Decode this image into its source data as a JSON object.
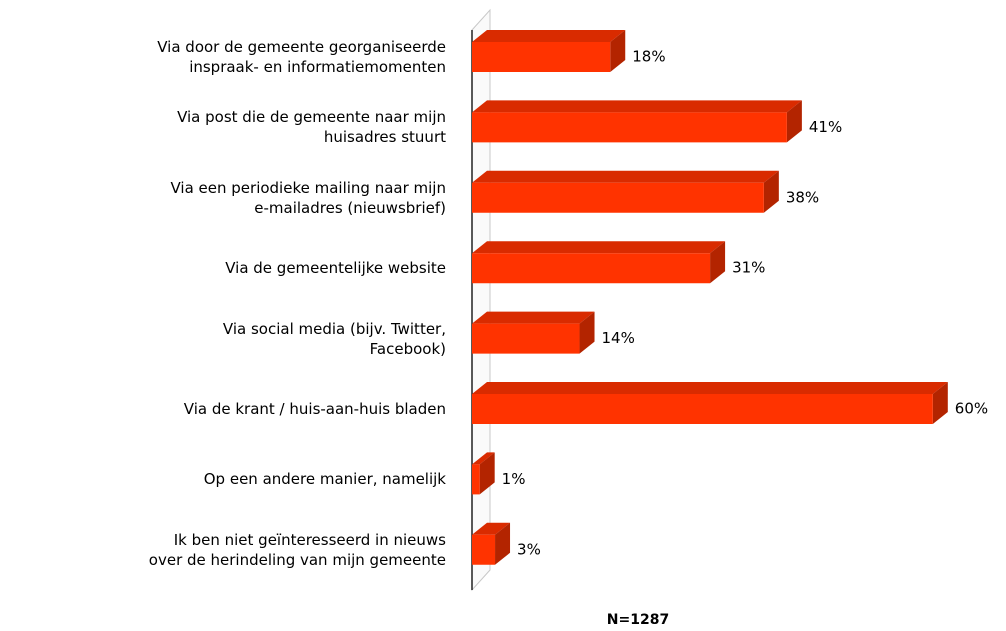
{
  "chart_data": {
    "type": "bar3d_horizontal",
    "categories": [
      "Via door de gemeente georganiseerde\ninspraak- en informatiemomenten",
      "Via post die de gemeente naar mijn\nhuisadres stuurt",
      "Via een periodieke mailing naar mijn\ne-mailadres (nieuwsbrief)",
      "Via de gemeentelijke website",
      "Via social media (bijv. Twitter,\nFacebook)",
      "Via de krant / huis-aan-huis bladen",
      "Op een andere manier, namelijk",
      "Ik ben niet geïnteresseerd in nieuws\nover de herindeling van mijn gemeente"
    ],
    "values": [
      18,
      41,
      38,
      31,
      14,
      60,
      1,
      3
    ],
    "value_labels": [
      "18%",
      "41%",
      "38%",
      "31%",
      "14%",
      "60%",
      "1%",
      "3%"
    ],
    "color": "#ff3300",
    "note": "N=1287"
  }
}
